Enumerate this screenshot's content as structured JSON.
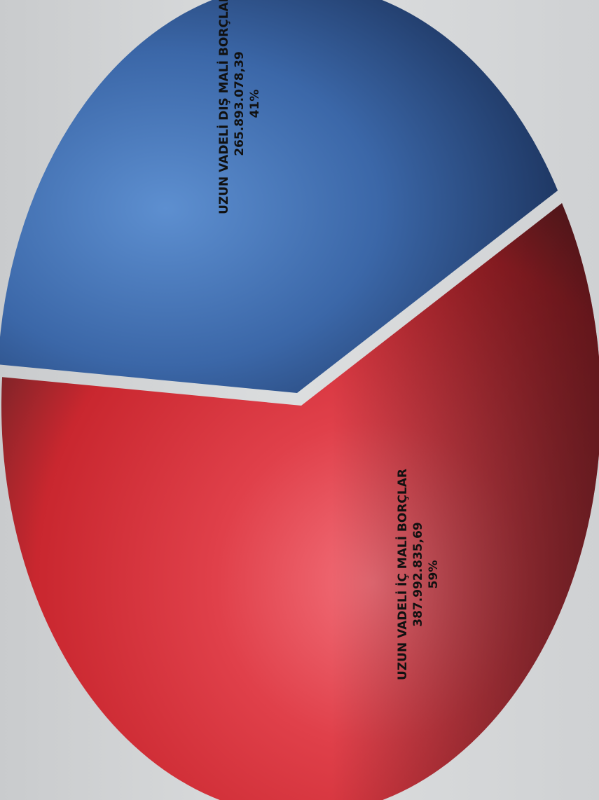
{
  "chart_data": {
    "type": "pie",
    "title": "",
    "slices": [
      {
        "label": "UZUN VADELİ DIŞ MALİ BORÇLAR",
        "value": 265893078.39,
        "value_text": "265.893.078,39",
        "percent_text": "41%",
        "color": "#3f6fb5"
      },
      {
        "label": "UZUN VADELİ İÇ MALİ BORÇLAR",
        "value": 387992835.69,
        "value_text": "387.992.835,69",
        "percent_text": "59%",
        "color": "#e0414c"
      }
    ],
    "legend": "none",
    "orientation": "rotated 90° counter-clockwise"
  }
}
